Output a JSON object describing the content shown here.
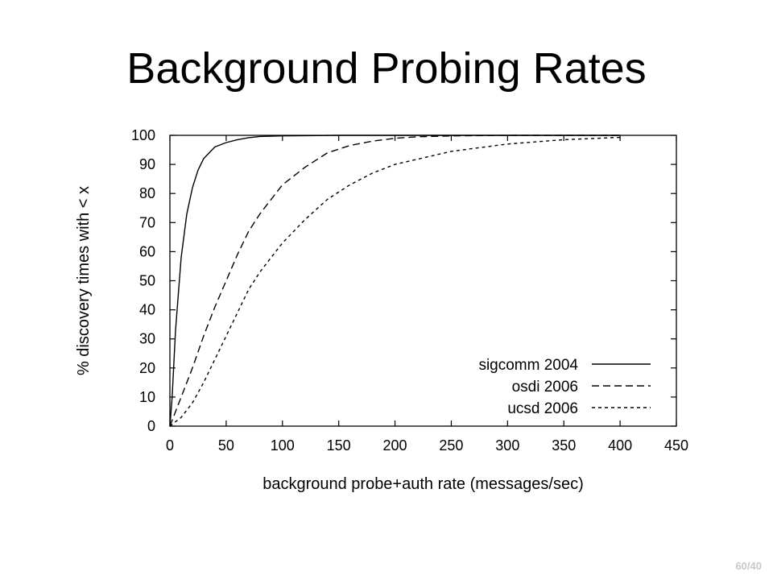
{
  "slide": {
    "title": "Background Probing Rates",
    "page_number": "60/40"
  },
  "chart_data": {
    "type": "line",
    "title": "",
    "xlabel": "background probe+auth rate (messages/sec)",
    "ylabel": "% discovery times with < x",
    "xlim": [
      0,
      450
    ],
    "ylim": [
      0,
      100
    ],
    "xticks": [
      0,
      50,
      100,
      150,
      200,
      250,
      300,
      350,
      400,
      450
    ],
    "yticks": [
      0,
      10,
      20,
      30,
      40,
      50,
      60,
      70,
      80,
      90,
      100
    ],
    "grid": false,
    "legend_position": "bottom-right",
    "series": [
      {
        "name": "sigcomm 2004",
        "dash": "solid",
        "x": [
          0,
          2,
          5,
          10,
          15,
          20,
          25,
          30,
          40,
          50,
          60,
          70,
          80,
          100,
          150,
          200,
          300,
          400
        ],
        "y": [
          0,
          10,
          33,
          58,
          73,
          82,
          88,
          92,
          96,
          97.5,
          98.5,
          99.2,
          99.6,
          99.8,
          100,
          100,
          100,
          100
        ]
      },
      {
        "name": "osdi 2006",
        "dash": "dashed",
        "x": [
          0,
          10,
          20,
          30,
          40,
          50,
          60,
          70,
          80,
          90,
          100,
          120,
          140,
          160,
          180,
          200,
          220,
          250,
          300,
          400
        ],
        "y": [
          0,
          10,
          20,
          31,
          41,
          50,
          59,
          67,
          73,
          78,
          83,
          89,
          94,
          96.5,
          98,
          99,
          99.5,
          99.8,
          100,
          100
        ]
      },
      {
        "name": "ucsd 2006",
        "dash": "dotted",
        "x": [
          0,
          10,
          20,
          30,
          40,
          50,
          60,
          70,
          80,
          90,
          100,
          120,
          140,
          160,
          180,
          200,
          250,
          300,
          350,
          400
        ],
        "y": [
          0,
          3,
          8,
          15,
          23,
          31,
          39,
          47,
          53,
          58,
          63,
          71,
          78,
          83,
          87,
          90,
          94.5,
          97,
          98.5,
          99.3
        ]
      }
    ]
  }
}
